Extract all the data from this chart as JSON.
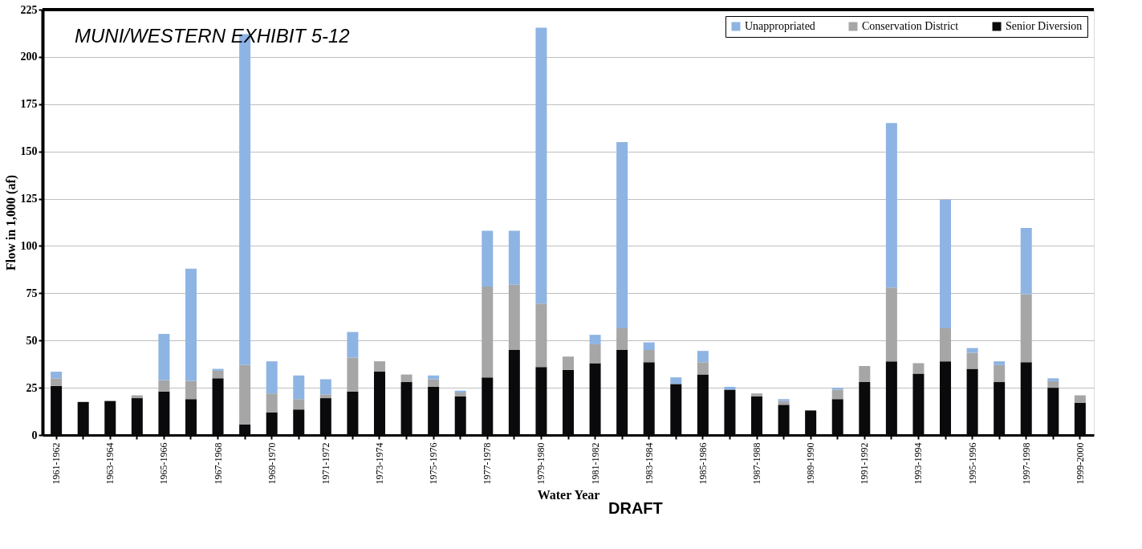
{
  "chart_data": {
    "type": "bar",
    "stacked": true,
    "xlabel": "Water Year",
    "ylabel": "Flow in 1,000 (af)",
    "annotations": [
      "MUNI/WESTERN EXHIBIT 5-12",
      "DRAFT"
    ],
    "categories": [
      "1961-1962",
      null,
      "1963-1964",
      null,
      "1965-1966",
      null,
      "1967-1968",
      null,
      "1969-1970",
      null,
      "1971-1972",
      null,
      "1973-1974",
      null,
      "1975-1976",
      null,
      "1977-1978",
      null,
      "1979-1980",
      null,
      "1981-1982",
      null,
      "1983-1984",
      null,
      "1985-1986",
      null,
      "1987-1988",
      null,
      "1989-1990",
      null,
      "1991-1992",
      null,
      "1993-1994",
      null,
      "1995-1996",
      null,
      "1997-1998",
      null,
      "1999-2000"
    ],
    "series": [
      {
        "name": "Senior Diversion",
        "color": "#0a0a0c",
        "values": [
          26,
          17.5,
          18,
          19.5,
          23,
          19,
          30,
          5.5,
          12,
          13.5,
          19.5,
          23,
          33.5,
          28,
          25.5,
          20.5,
          30.5,
          45,
          36,
          34.5,
          38,
          45,
          38.5,
          27,
          32,
          24,
          20.5,
          16,
          13,
          19,
          28,
          39,
          32.5,
          39,
          35,
          28,
          38.5,
          25,
          17
        ]
      },
      {
        "name": "Conservation District",
        "color": "#a6a6a6",
        "values": [
          4,
          null,
          null,
          1.5,
          6,
          9.5,
          4,
          31.5,
          10,
          5.5,
          2,
          18,
          5.5,
          4,
          4,
          2,
          48,
          34.5,
          33.5,
          7,
          10,
          11.5,
          6.5,
          0,
          6.5,
          0,
          1.5,
          2,
          0,
          5,
          8.5,
          39,
          5.5,
          17.5,
          8.5,
          9,
          36,
          3.5,
          4
        ]
      },
      {
        "name": "Unappropriated",
        "color": "#8eb4e3",
        "values": [
          3.5,
          0,
          0,
          0,
          24.5,
          59.5,
          1,
          175,
          17,
          12.5,
          8,
          13.5,
          0,
          0,
          2,
          1,
          29.5,
          28.5,
          146,
          0,
          5,
          98.5,
          4,
          3.5,
          6,
          1.5,
          0,
          1,
          0,
          1,
          0,
          87,
          0,
          68,
          2.5,
          2,
          35,
          1.5,
          0
        ]
      }
    ],
    "ylim": [
      0,
      225
    ],
    "yticks": [
      0,
      25,
      50,
      75,
      100,
      125,
      150,
      175,
      200,
      225
    ],
    "grid": "y",
    "legend": "top right"
  }
}
